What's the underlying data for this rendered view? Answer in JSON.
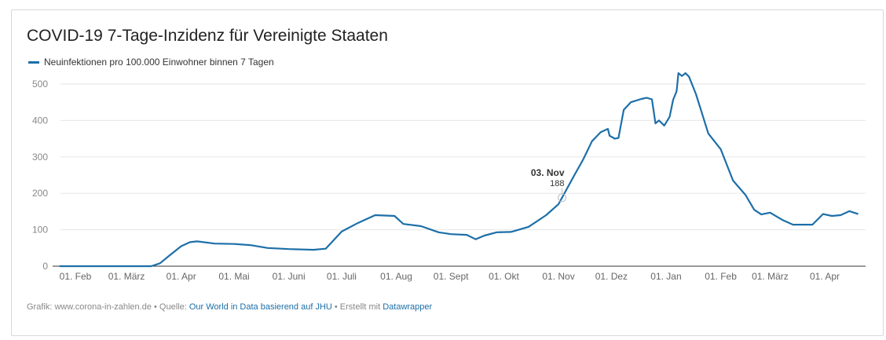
{
  "chart_data": {
    "type": "line",
    "title": "COVID-19 7-Tage-Inzidenz für Vereinigte Staaten",
    "series": [
      {
        "name": "Neuinfektionen pro 100.000 Einwohner binnen 7 Tagen",
        "color": "#1d6fa8",
        "points": [
          [
            "2020-01-23",
            0
          ],
          [
            "2020-03-15",
            0
          ],
          [
            "2020-03-20",
            8
          ],
          [
            "2020-03-25",
            28
          ],
          [
            "2020-04-01",
            55
          ],
          [
            "2020-04-06",
            66
          ],
          [
            "2020-04-10",
            68
          ],
          [
            "2020-04-20",
            62
          ],
          [
            "2020-05-01",
            61
          ],
          [
            "2020-05-10",
            58
          ],
          [
            "2020-05-20",
            50
          ],
          [
            "2020-06-01",
            47
          ],
          [
            "2020-06-15",
            45
          ],
          [
            "2020-06-22",
            48
          ],
          [
            "2020-07-01",
            95
          ],
          [
            "2020-07-10",
            118
          ],
          [
            "2020-07-20",
            140
          ],
          [
            "2020-07-31",
            138
          ],
          [
            "2020-08-05",
            116
          ],
          [
            "2020-08-15",
            110
          ],
          [
            "2020-08-25",
            93
          ],
          [
            "2020-09-01",
            88
          ],
          [
            "2020-09-10",
            86
          ],
          [
            "2020-09-15",
            74
          ],
          [
            "2020-09-20",
            84
          ],
          [
            "2020-09-27",
            93
          ],
          [
            "2020-10-05",
            94
          ],
          [
            "2020-10-15",
            108
          ],
          [
            "2020-10-25",
            140
          ],
          [
            "2020-11-01",
            170
          ],
          [
            "2020-11-03",
            188
          ],
          [
            "2020-11-10",
            250
          ],
          [
            "2020-11-15",
            293
          ],
          [
            "2020-11-20",
            343
          ],
          [
            "2020-11-25",
            368
          ],
          [
            "2020-11-29",
            377
          ],
          [
            "2020-11-30",
            358
          ],
          [
            "2020-12-03",
            350
          ],
          [
            "2020-12-05",
            352
          ],
          [
            "2020-12-08",
            429
          ],
          [
            "2020-12-12",
            450
          ],
          [
            "2020-12-18",
            459
          ],
          [
            "2020-12-21",
            462
          ],
          [
            "2020-12-24",
            458
          ],
          [
            "2020-12-26",
            392
          ],
          [
            "2020-12-28",
            400
          ],
          [
            "2020-12-31",
            386
          ],
          [
            "2021-01-03",
            410
          ],
          [
            "2021-01-05",
            457
          ],
          [
            "2021-01-07",
            480
          ],
          [
            "2021-01-08",
            530
          ],
          [
            "2021-01-10",
            522
          ],
          [
            "2021-01-12",
            530
          ],
          [
            "2021-01-14",
            520
          ],
          [
            "2021-01-18",
            472
          ],
          [
            "2021-01-25",
            364
          ],
          [
            "2021-02-01",
            321
          ],
          [
            "2021-02-08",
            235
          ],
          [
            "2021-02-15",
            196
          ],
          [
            "2021-02-20",
            155
          ],
          [
            "2021-02-24",
            142
          ],
          [
            "2021-03-01",
            147
          ],
          [
            "2021-03-08",
            127
          ],
          [
            "2021-03-14",
            114
          ],
          [
            "2021-03-25",
            114
          ],
          [
            "2021-03-31",
            143
          ],
          [
            "2021-04-05",
            138
          ],
          [
            "2021-04-10",
            140
          ],
          [
            "2021-04-15",
            151
          ],
          [
            "2021-04-20",
            143
          ]
        ]
      }
    ],
    "ylim": [
      0,
      530
    ],
    "yticks": [
      "0",
      "100",
      "200",
      "300",
      "400",
      "500"
    ],
    "xticks": [
      {
        "date": "2020-02-01",
        "label": "01. Feb"
      },
      {
        "date": "2020-03-01",
        "label": "01. März"
      },
      {
        "date": "2020-04-01",
        "label": "01. Apr"
      },
      {
        "date": "2020-05-01",
        "label": "01. Mai"
      },
      {
        "date": "2020-06-01",
        "label": "01. Juni"
      },
      {
        "date": "2020-07-01",
        "label": "01. Juli"
      },
      {
        "date": "2020-08-01",
        "label": "01. Aug"
      },
      {
        "date": "2020-09-01",
        "label": "01. Sept"
      },
      {
        "date": "2020-10-01",
        "label": "01. Okt"
      },
      {
        "date": "2020-11-01",
        "label": "01. Nov"
      },
      {
        "date": "2020-12-01",
        "label": "01. Dez"
      },
      {
        "date": "2021-01-01",
        "label": "01. Jan"
      },
      {
        "date": "2021-02-01",
        "label": "01. Feb"
      },
      {
        "date": "2021-03-01",
        "label": "01. März"
      },
      {
        "date": "2021-04-01",
        "label": "01. Apr"
      }
    ],
    "grid": true,
    "legend_position": "top-left",
    "annotation": {
      "date": "2020-11-03",
      "label": "03. Nov",
      "value": "188"
    }
  },
  "footer": {
    "prefix": "Grafik: www.corona-in-zahlen.de • Quelle: ",
    "source_link": "Our World in Data basierend auf JHU",
    "middle": " • Erstellt mit ",
    "tool_link": "Datawrapper"
  }
}
